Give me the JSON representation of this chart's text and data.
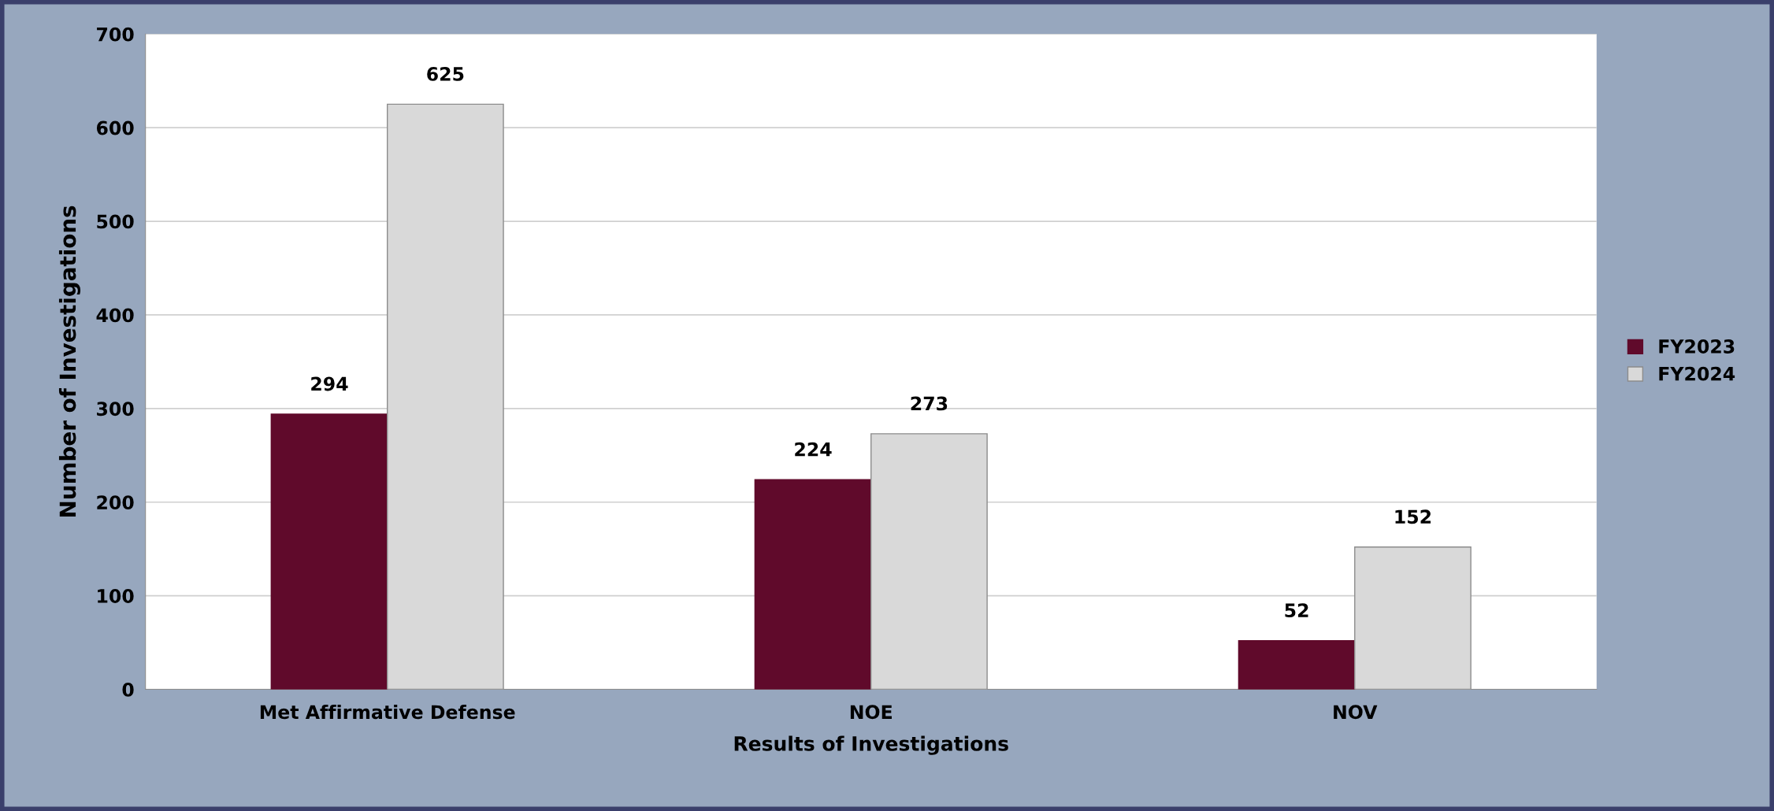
{
  "chart_data": {
    "type": "bar",
    "xlabel": "Results of Investigations",
    "ylabel": "Number of Investigations",
    "categories": [
      "Met Affirmative Defense",
      "NOE",
      "NOV"
    ],
    "series": [
      {
        "name": "FY2023",
        "color": "#600a2b",
        "values": [
          294,
          224,
          52
        ]
      },
      {
        "name": "FY2024",
        "color": "#d9d9d9",
        "values": [
          625,
          273,
          152
        ]
      }
    ],
    "ylim": [
      0,
      700
    ],
    "yticks": [
      0,
      100,
      200,
      300,
      400,
      500,
      600,
      700
    ],
    "grid": "y",
    "legend": "right",
    "data_labels": true
  }
}
